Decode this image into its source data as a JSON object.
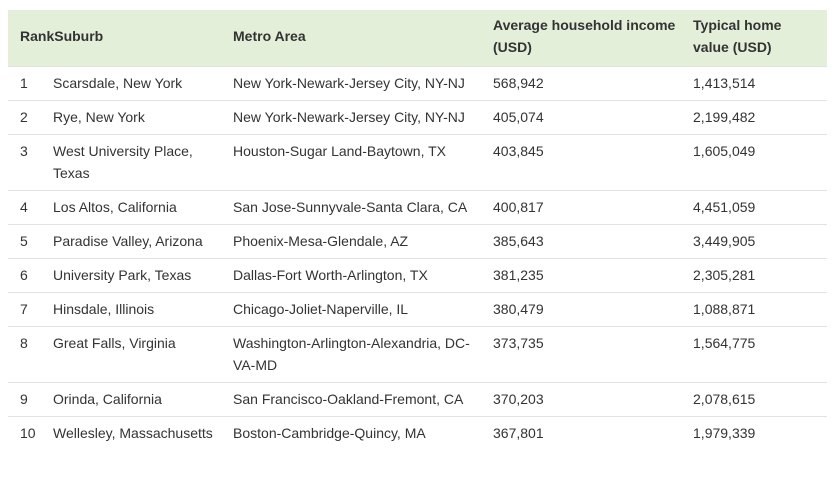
{
  "table": {
    "headers": {
      "rank_suburb": "RankSuburb",
      "metro": "Metro Area",
      "income": "Average household income (USD)",
      "home": "Typical home value (USD)"
    },
    "rows": [
      {
        "rank": "1",
        "suburb": "Scarsdale, New York",
        "metro": "New York-Newark-Jersey City, NY-NJ",
        "income": "568,942",
        "home": "1,413,514"
      },
      {
        "rank": "2",
        "suburb": "Rye, New York",
        "metro": "New York-Newark-Jersey City, NY-NJ",
        "income": "405,074",
        "home": "2,199,482"
      },
      {
        "rank": "3",
        "suburb": "West University Place, Texas",
        "metro": "Houston-Sugar Land-Baytown, TX",
        "income": "403,845",
        "home": "1,605,049"
      },
      {
        "rank": "4",
        "suburb": "Los Altos, California",
        "metro": "San Jose-Sunnyvale-Santa Clara, CA",
        "income": "400,817",
        "home": "4,451,059"
      },
      {
        "rank": "5",
        "suburb": "Paradise Valley, Arizona",
        "metro": "Phoenix-Mesa-Glendale, AZ",
        "income": "385,643",
        "home": "3,449,905"
      },
      {
        "rank": "6",
        "suburb": "University Park, Texas",
        "metro": "Dallas-Fort Worth-Arlington, TX",
        "income": "381,235",
        "home": "2,305,281"
      },
      {
        "rank": "7",
        "suburb": "Hinsdale, Illinois",
        "metro": "Chicago-Joliet-Naperville, IL",
        "income": "380,479",
        "home": "1,088,871"
      },
      {
        "rank": "8",
        "suburb": "Great Falls, Virginia",
        "metro": "Washington-Arlington-Alexandria, DC-VA-MD",
        "income": "373,735",
        "home": "1,564,775"
      },
      {
        "rank": "9",
        "suburb": "Orinda, California",
        "metro": "San Francisco-Oakland-Fremont, CA",
        "income": "370,203",
        "home": "2,078,615"
      },
      {
        "rank": "10",
        "suburb": "Wellesley, Massachusetts",
        "metro": "Boston-Cambridge-Quincy, MA",
        "income": "367,801",
        "home": "1,979,339"
      }
    ]
  }
}
